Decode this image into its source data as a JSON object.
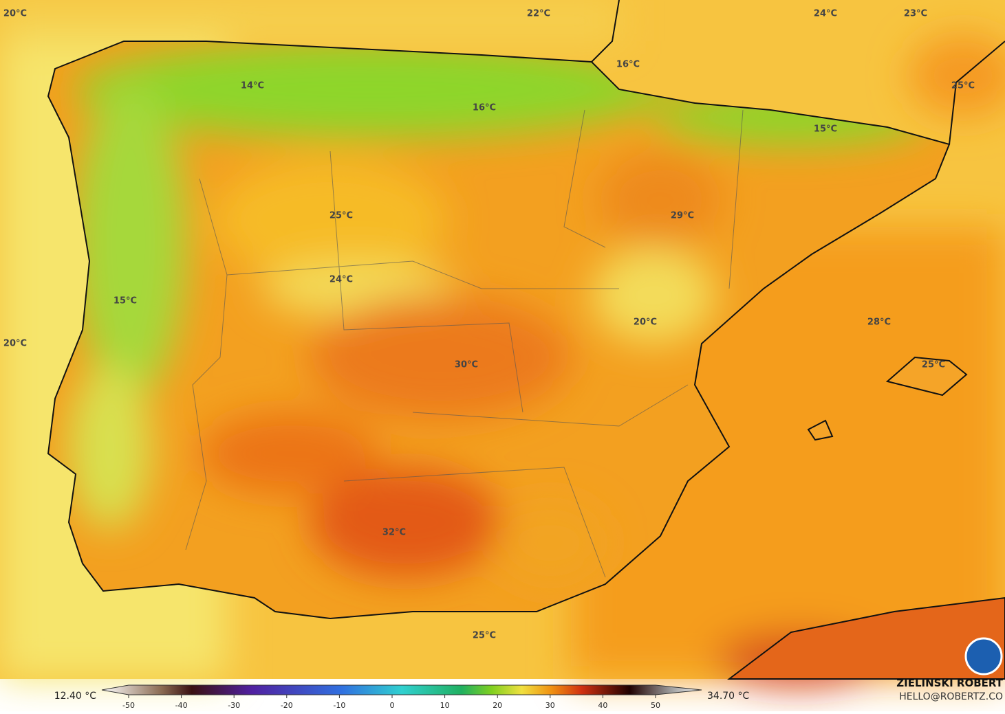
{
  "map": {
    "labels": [
      "20°C",
      "22°C",
      "24°C",
      "23°C",
      "16°C",
      "14°C",
      "16°C",
      "25°C",
      "15°C",
      "29°C",
      "25°C",
      "24°C",
      "15°C",
      "20°C",
      "28°C",
      "20°C",
      "25°C",
      "30°C",
      "32°C",
      "25°C"
    ],
    "colorbar": {
      "min_label": "12.40 °C",
      "max_label": "34.70 °C",
      "ticks": [
        -50,
        -40,
        -30,
        -20,
        -10,
        0,
        10,
        20,
        30,
        40,
        50
      ]
    }
  },
  "credit": {
    "name": "ZIELINSKI ROBERT",
    "email": "HELLO@ROBERTZ.CO"
  }
}
